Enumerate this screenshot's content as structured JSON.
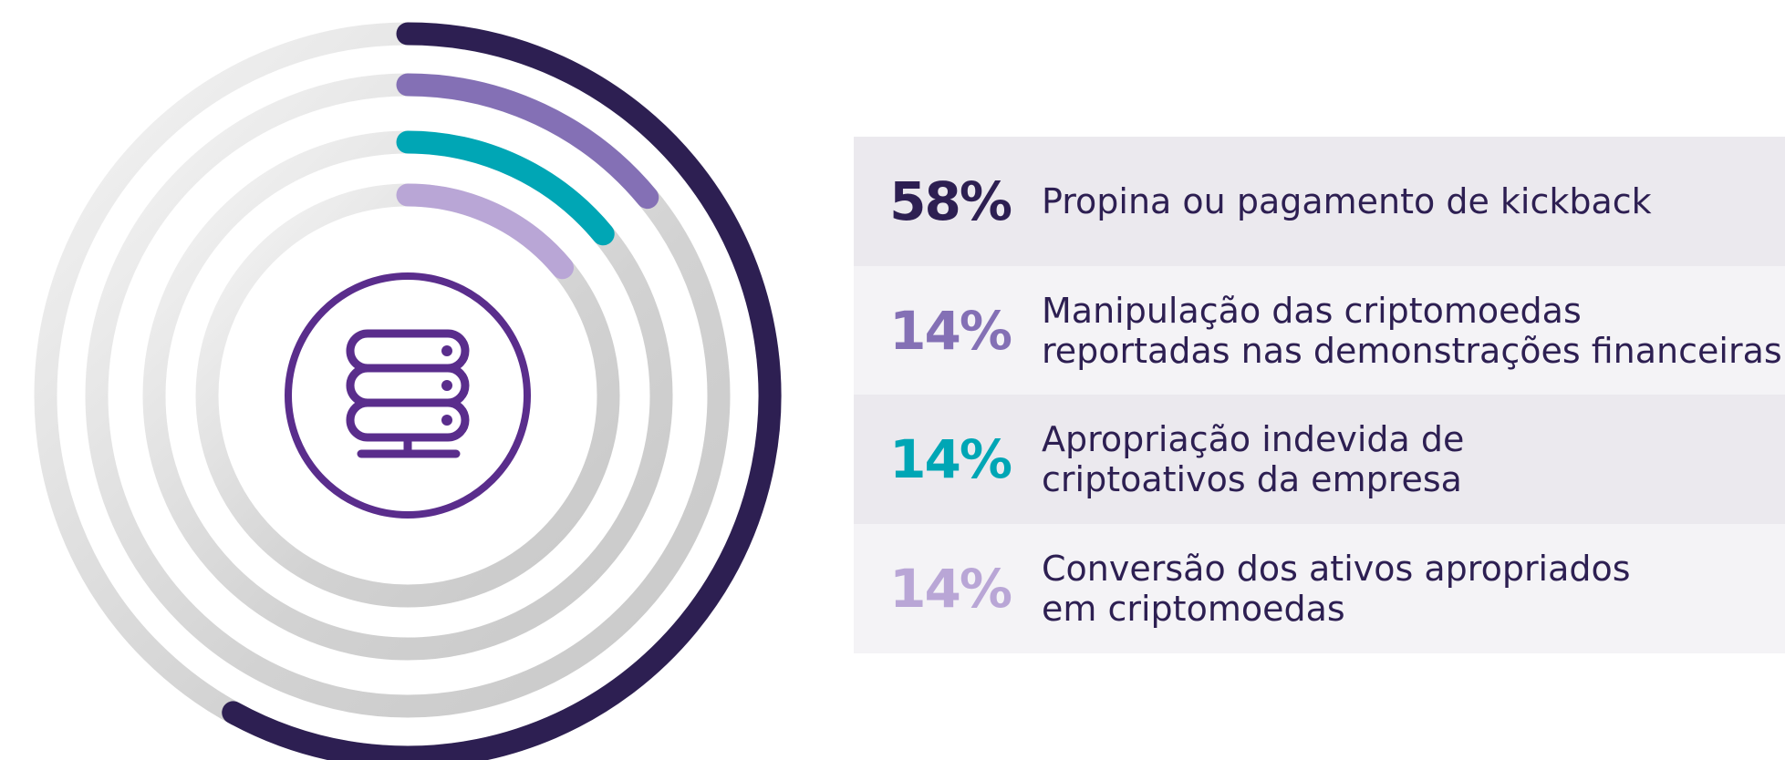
{
  "chart_data": {
    "type": "radial_bar",
    "categories": [
      "Propina ou pagamento de kickback",
      "Manipulação das criptomoedas\nreportadas nas demonstrações financeiras",
      "Apropriação indevida de\ncriptoativos da empresa",
      "Conversão dos ativos apropriados\nem criptomoedas"
    ],
    "values": [
      58,
      14,
      14,
      14
    ],
    "value_labels": [
      "58%",
      "14%",
      "14%",
      "14%"
    ],
    "colors": [
      "#2d1f52",
      "#8470b5",
      "#00a6b5",
      "#b9a6d6"
    ]
  }
}
